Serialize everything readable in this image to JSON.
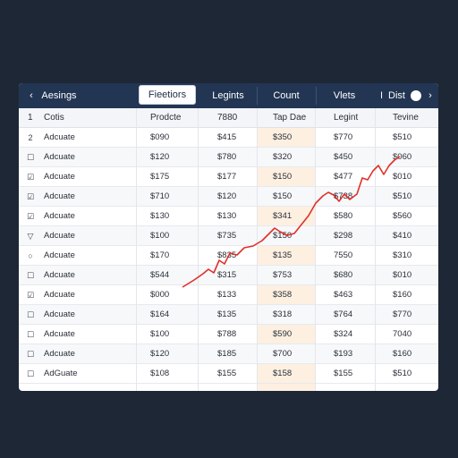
{
  "tabs": [
    {
      "label": "Aesings",
      "active": false
    },
    {
      "label": "Fieetiors",
      "active": true
    },
    {
      "label": "Legints",
      "active": false
    },
    {
      "label": "Count",
      "active": false
    },
    {
      "label": "Vlets",
      "active": false
    },
    {
      "label": "Dist",
      "active": false
    }
  ],
  "tab_prefix_dist": "I",
  "icons": {
    "back": "chevron-left-icon",
    "next": "chevron-right-icon",
    "toggle": "toggle-icon"
  },
  "table": {
    "header": {
      "num": "1",
      "name": "Cotis",
      "columns": [
        "Prodcte",
        "7880",
        "Tap Dae",
        "Legint",
        "Tevine"
      ]
    },
    "rows": [
      {
        "icon": "2",
        "name": "Adcuate",
        "values": [
          "$090",
          "$415",
          "$350",
          "$770",
          "$510"
        ]
      },
      {
        "icon": "☐",
        "name": "Adcuate",
        "values": [
          "$120",
          "$780",
          "$320",
          "$450",
          "$060"
        ]
      },
      {
        "icon": "☑",
        "name": "Adcuate",
        "values": [
          "$175",
          "$177",
          "$150",
          "$477",
          "$010"
        ]
      },
      {
        "icon": "☑",
        "name": "Adcuate",
        "values": [
          "$710",
          "$120",
          "$150",
          "$738",
          "$510"
        ]
      },
      {
        "icon": "☑",
        "name": "Adcuate",
        "values": [
          "$130",
          "$130",
          "$341",
          "$580",
          "$560"
        ]
      },
      {
        "icon": "▽",
        "name": "Adcuate",
        "values": [
          "$100",
          "$735",
          "$150",
          "$298",
          "$410"
        ]
      },
      {
        "icon": "○",
        "name": "Adcuate",
        "values": [
          "$170",
          "$835",
          "$135",
          "7550",
          "$310"
        ]
      },
      {
        "icon": "☐",
        "name": "Adcuate",
        "values": [
          "$544",
          "$315",
          "$753",
          "$680",
          "$010"
        ]
      },
      {
        "icon": "☑",
        "name": "Adcuate",
        "values": [
          "$000",
          "$133",
          "$358",
          "$463",
          "$160"
        ]
      },
      {
        "icon": "☐",
        "name": "Adcuate",
        "values": [
          "$164",
          "$135",
          "$318",
          "$764",
          "$770"
        ]
      },
      {
        "icon": "☐",
        "name": "Adcuate",
        "values": [
          "$100",
          "$788",
          "$590",
          "$324",
          "7040"
        ]
      },
      {
        "icon": "☐",
        "name": "Adcuate",
        "values": [
          "$120",
          "$185",
          "$700",
          "$193",
          "$160"
        ]
      },
      {
        "icon": "☐",
        "name": "AdGuate",
        "values": [
          "$108",
          "$155",
          "$158",
          "$155",
          "$510"
        ]
      }
    ]
  },
  "colors": {
    "header_bar": "#223553",
    "highlight_column": "#fdf0e1",
    "trend_line": "#e0302a"
  }
}
